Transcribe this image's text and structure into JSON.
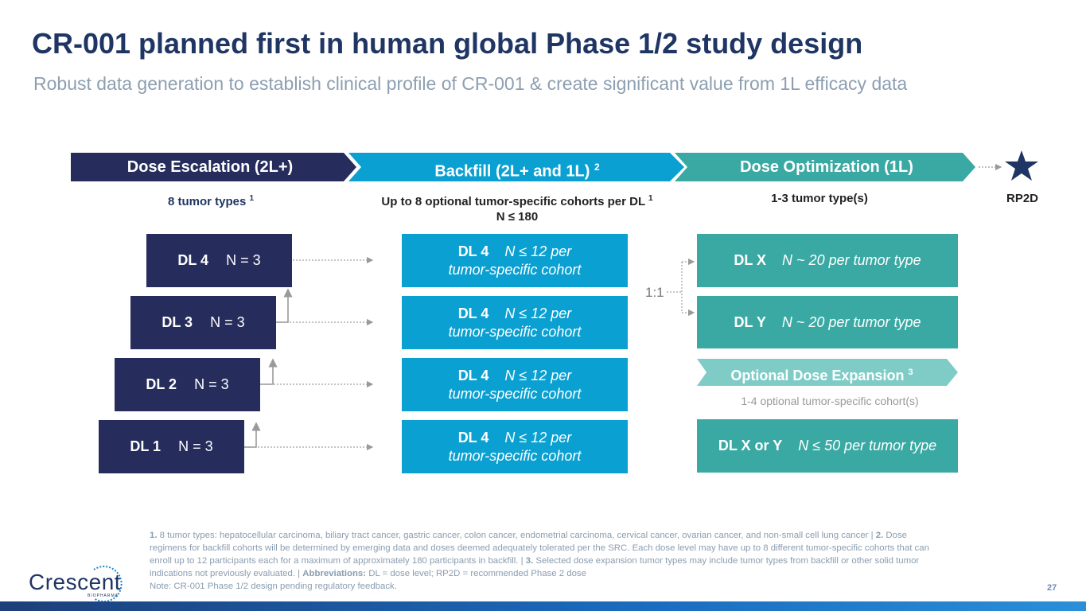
{
  "title": "CR-001 planned first in human global Phase 1/2 study design",
  "subtitle": "Robust data generation to establish clinical profile of CR-001 & create significant value from 1L efficacy data",
  "colors": {
    "navy": "#262d5c",
    "blue": "#0ba0d2",
    "teal": "#3aa9a3",
    "light_teal": "#7fccc7",
    "title": "#1f3564"
  },
  "phases": {
    "escalation": {
      "label": "Dose Escalation (2L+)",
      "sub": "8 tumor types",
      "sub_sup": "1"
    },
    "backfill": {
      "label": "Backfill (2L+ and 1L)",
      "label_sup": "2",
      "sub": "Up to 8 optional tumor-specific cohorts per DL",
      "sub_sup": "1",
      "sub2": "N ≤ 180"
    },
    "optimization": {
      "label": "Dose Optimization (1L)",
      "sub": "1-3 tumor type(s)"
    },
    "rp2d": "RP2D"
  },
  "escalation_boxes": [
    {
      "dl": "DL 4",
      "n": "N = 3"
    },
    {
      "dl": "DL 3",
      "n": "N = 3"
    },
    {
      "dl": "DL 2",
      "n": "N = 3"
    },
    {
      "dl": "DL 1",
      "n": "N = 3"
    }
  ],
  "backfill_boxes": [
    {
      "dl": "DL 4",
      "n": "N ≤ 12 per",
      "n2": "tumor-specific cohort"
    },
    {
      "dl": "DL 4",
      "n": "N ≤ 12 per",
      "n2": "tumor-specific cohort"
    },
    {
      "dl": "DL 4",
      "n": "N ≤ 12 per",
      "n2": "tumor-specific  cohort"
    },
    {
      "dl": "DL 4",
      "n": "N ≤ 12 per",
      "n2": "tumor-specific cohort"
    }
  ],
  "optimization_boxes": [
    {
      "dl": "DL X",
      "n": "N ~ 20 per tumor type"
    },
    {
      "dl": "DL Y",
      "n": "N ~ 20 per tumor type"
    }
  ],
  "ratio": "1:1",
  "optional_expansion": {
    "label": "Optional Dose Expansion",
    "sup": "3",
    "note": "1-4 optional tumor-specific cohort(s)",
    "dl": "DL X or Y",
    "n": "N ≤ 50 per tumor type"
  },
  "footnotes": {
    "n1": "1.",
    "t1": " 8 tumor types: hepatocellular carcinoma, biliary tract cancer, gastric cancer, colon cancer, endometrial carcinoma, cervical cancer, ovarian cancer, and non-small cell lung cancer | ",
    "n2": "2.",
    "t2": " Dose regimens for backfill cohorts will be determined by emerging data and doses deemed adequately tolerated per the SRC. Each dose level may have up to 8 different tumor-specific cohorts that can enroll up to 12 participants each for a maximum of approximately 180 participants in backfill. | ",
    "n3": "3.",
    "t3": " Selected dose expansion tumor types may include tumor types from backfill or other solid tumor indications not previously evaluated. | ",
    "abbr_label": "Abbreviations:",
    "abbr": " DL = dose level; RP2D = recommended Phase 2 dose",
    "note": "Note: CR-001 Phase 1/2 design pending regulatory feedback."
  },
  "logo": {
    "name": "Crescent",
    "sub": "BIOPHARMA"
  },
  "page_number": "27"
}
